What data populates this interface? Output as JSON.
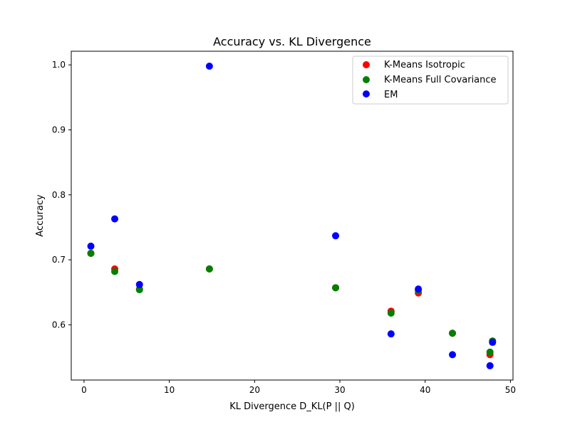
{
  "chart_data": {
    "type": "scatter",
    "title": "Accuracy vs. KL Divergence",
    "xlabel": "KL Divergence D_KL(P || Q)",
    "ylabel": "Accuracy",
    "xlim": [
      -1.5,
      50.3
    ],
    "ylim": [
      0.515,
      1.021
    ],
    "xticks": [
      0,
      10,
      20,
      30,
      40,
      50
    ],
    "yticks": [
      0.6,
      0.7,
      0.8,
      0.9,
      1.0
    ],
    "xtick_labels": [
      "0",
      "10",
      "20",
      "30",
      "40",
      "50"
    ],
    "ytick_labels": [
      "0.6",
      "0.7",
      "0.8",
      "0.9",
      "1.0"
    ],
    "grid": false,
    "legend_position": "upper right",
    "series": [
      {
        "name": "K-Means Isotropic",
        "color": "#ff0000",
        "x": [
          0.8,
          3.6,
          6.5,
          14.7,
          29.5,
          36.0,
          39.2,
          43.2,
          47.6,
          47.9
        ],
        "y": [
          0.71,
          0.686,
          0.655,
          0.686,
          0.657,
          0.621,
          0.649,
          0.587,
          0.554,
          0.575
        ]
      },
      {
        "name": "K-Means Full Covariance",
        "color": "#008000",
        "x": [
          0.8,
          3.6,
          6.5,
          14.7,
          29.5,
          36.0,
          39.2,
          43.2,
          47.6,
          47.9
        ],
        "y": [
          0.71,
          0.682,
          0.654,
          0.686,
          0.657,
          0.618,
          0.653,
          0.587,
          0.558,
          0.575
        ]
      },
      {
        "name": "EM",
        "color": "#0000ff",
        "x": [
          0.8,
          3.6,
          6.5,
          14.7,
          29.5,
          36.0,
          39.2,
          43.2,
          47.6,
          47.9
        ],
        "y": [
          0.721,
          0.763,
          0.662,
          0.998,
          0.737,
          0.586,
          0.655,
          0.554,
          0.537,
          0.573
        ]
      }
    ]
  }
}
